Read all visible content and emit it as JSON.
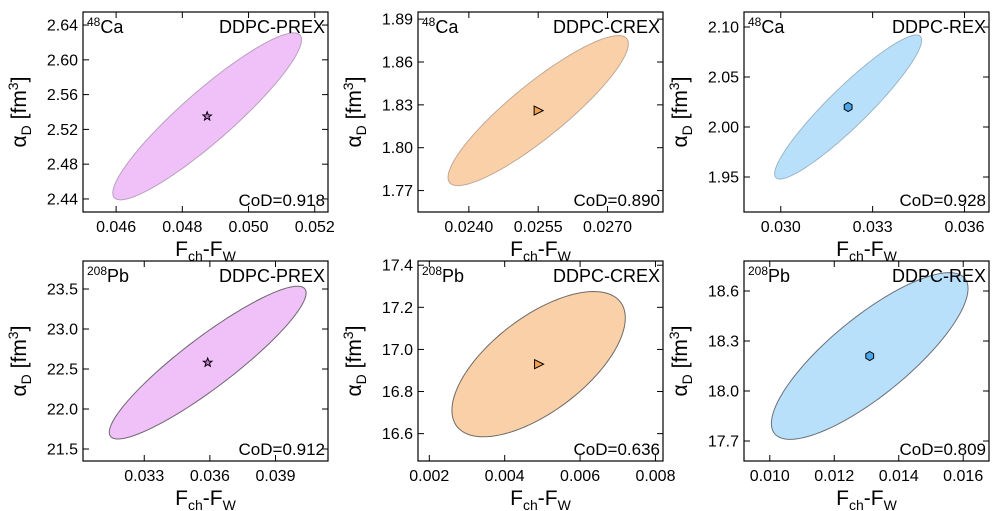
{
  "chart_data": [
    {
      "type": "scatter",
      "nucleus": {
        "mass": "48",
        "element": "Ca"
      },
      "label": "DDPC-PREX",
      "cod": "CoD=0.918",
      "xlabel": {
        "main": "F",
        "sub1": "ch",
        "mid": "-F",
        "sub2": "W"
      },
      "ylabel": {
        "main": "α",
        "sub": "D",
        "unit_open": " [fm",
        "unit_sup": "3",
        "unit_close": "]"
      },
      "xlim": [
        0.045,
        0.0524
      ],
      "ylim": [
        2.425,
        2.655
      ],
      "xticks": [
        0.046,
        0.048,
        0.05,
        0.052
      ],
      "xtick_labels": [
        "0.046",
        "0.048",
        "0.050",
        "0.052"
      ],
      "yticks": [
        2.44,
        2.48,
        2.52,
        2.56,
        2.6,
        2.64
      ],
      "ytick_labels": [
        "2.44",
        "2.48",
        "2.52",
        "2.56",
        "2.60",
        "2.64"
      ],
      "center": {
        "x": 0.04875,
        "y": 2.535
      },
      "ellipse": {
        "x_min": 0.0459,
        "x_max": 0.0516,
        "y_min": 2.44,
        "y_max": 2.632
      },
      "marker": "star",
      "fill_color": "#f0c0f8",
      "edge_color": "#b9a0be"
    },
    {
      "type": "scatter",
      "nucleus": {
        "mass": "48",
        "element": "Ca"
      },
      "label": "DDPC-CREX",
      "cod": "CoD=0.890",
      "xlabel": {
        "main": "F",
        "sub1": "ch",
        "mid": "-F",
        "sub2": "W"
      },
      "ylabel": {
        "main": "α",
        "sub": "D",
        "unit_open": " [fm",
        "unit_sup": "3",
        "unit_close": "]"
      },
      "xlim": [
        0.0229,
        0.0282
      ],
      "ylim": [
        1.755,
        1.895
      ],
      "xticks": [
        0.024,
        0.0255,
        0.027
      ],
      "xtick_labels": [
        "0.0240",
        "0.0255",
        "0.0270"
      ],
      "yticks": [
        1.77,
        1.8,
        1.83,
        1.86,
        1.89
      ],
      "ytick_labels": [
        "1.77",
        "1.80",
        "1.83",
        "1.86",
        "1.89"
      ],
      "center": {
        "x": 0.0255,
        "y": 1.826
      },
      "ellipse": {
        "x_min": 0.02355,
        "x_max": 0.02745,
        "y_min": 1.773,
        "y_max": 1.878
      },
      "marker": "triangle-right",
      "fill_color": "#fad0a8",
      "edge_color": "#c0a896"
    },
    {
      "type": "scatter",
      "nucleus": {
        "mass": "48",
        "element": "Ca"
      },
      "label": "DDPC-REX",
      "cod": "CoD=0.928",
      "xlabel": {
        "main": "F",
        "sub1": "ch",
        "mid": "-F",
        "sub2": "W"
      },
      "ylabel": {
        "main": "α",
        "sub": "D",
        "unit_open": " [fm",
        "unit_sup": "3",
        "unit_close": "]"
      },
      "xlim": [
        0.0288,
        0.0368
      ],
      "ylim": [
        1.915,
        2.115
      ],
      "xticks": [
        0.03,
        0.033,
        0.036
      ],
      "xtick_labels": [
        "0.030",
        "0.033",
        "0.036"
      ],
      "yticks": [
        1.95,
        2.0,
        2.05,
        2.1
      ],
      "ytick_labels": [
        "1.95",
        "2.00",
        "2.05",
        "2.10"
      ],
      "center": {
        "x": 0.0322,
        "y": 2.02
      },
      "ellipse": {
        "x_min": 0.0298,
        "x_max": 0.0346,
        "y_min": 1.948,
        "y_max": 2.092
      },
      "marker": "hexagon",
      "fill_color": "#b8e0fa",
      "edge_color": "#9bb6c8"
    },
    {
      "type": "scatter",
      "nucleus": {
        "mass": "208",
        "element": "Pb"
      },
      "label": "DDPC-PREX",
      "cod": "CoD=0.912",
      "xlabel": {
        "main": "F",
        "sub1": "ch",
        "mid": "-F",
        "sub2": "W"
      },
      "ylabel": {
        "main": "α",
        "sub": "D",
        "unit_open": " [fm",
        "unit_sup": "3",
        "unit_close": "]"
      },
      "xlim": [
        0.0302,
        0.0414
      ],
      "ylim": [
        21.35,
        23.85
      ],
      "xticks": [
        0.033,
        0.036,
        0.039
      ],
      "xtick_labels": [
        "0.033",
        "0.036",
        "0.039"
      ],
      "yticks": [
        21.5,
        22.0,
        22.5,
        23.0,
        23.5
      ],
      "ytick_labels": [
        "21.5",
        "22.0",
        "22.5",
        "23.0",
        "23.5"
      ],
      "center": {
        "x": 0.0359,
        "y": 22.58
      },
      "ellipse": {
        "x_min": 0.0315,
        "x_max": 0.0405,
        "y_min": 21.62,
        "y_max": 23.53
      },
      "marker": "star",
      "fill_color": "#f0c0f8",
      "edge_color": "#6e6670"
    },
    {
      "type": "scatter",
      "nucleus": {
        "mass": "208",
        "element": "Pb"
      },
      "label": "DDPC-CREX",
      "cod": "CoD=0.636",
      "xlabel": {
        "main": "F",
        "sub1": "ch",
        "mid": "-F",
        "sub2": "W"
      },
      "ylabel": {
        "main": "α",
        "sub": "D",
        "unit_open": " [fm",
        "unit_sup": "3",
        "unit_close": "]"
      },
      "xlim": [
        0.0017,
        0.0082
      ],
      "ylim": [
        16.47,
        17.42
      ],
      "xticks": [
        0.002,
        0.004,
        0.006,
        0.008
      ],
      "xtick_labels": [
        "0.002",
        "0.004",
        "0.006",
        "0.008"
      ],
      "yticks": [
        16.6,
        16.8,
        17.0,
        17.2,
        17.4
      ],
      "ytick_labels": [
        "16.6",
        "16.8",
        "17.0",
        "17.2",
        "17.4"
      ],
      "center": {
        "x": 0.0049,
        "y": 16.93
      },
      "ellipse": {
        "x_min": 0.0026,
        "x_max": 0.0072,
        "y_min": 16.59,
        "y_max": 17.28
      },
      "marker": "triangle-right",
      "fill_color": "#fad0a8",
      "edge_color": "#6e6a66"
    },
    {
      "type": "scatter",
      "nucleus": {
        "mass": "208",
        "element": "Pb"
      },
      "label": "DDPC-REX",
      "cod": "CoD=0.809",
      "xlabel": {
        "main": "F",
        "sub1": "ch",
        "mid": "-F",
        "sub2": "W"
      },
      "ylabel": {
        "main": "α",
        "sub": "D",
        "unit_open": " [fm",
        "unit_sup": "3",
        "unit_close": "]"
      },
      "xlim": [
        0.0092,
        0.0168
      ],
      "ylim": [
        17.58,
        18.78
      ],
      "xticks": [
        0.01,
        0.012,
        0.014,
        0.016
      ],
      "xtick_labels": [
        "0.010",
        "0.012",
        "0.014",
        "0.016"
      ],
      "yticks": [
        17.7,
        18.0,
        18.3,
        18.6
      ],
      "ytick_labels": [
        "17.7",
        "18.0",
        "18.3",
        "18.6"
      ],
      "center": {
        "x": 0.0131,
        "y": 18.21
      },
      "ellipse": {
        "x_min": 0.0102,
        "x_max": 0.0163,
        "y_min": 17.72,
        "y_max": 18.72
      },
      "marker": "hexagon",
      "fill_color": "#b8e0fa",
      "edge_color": "#6a7078"
    }
  ]
}
